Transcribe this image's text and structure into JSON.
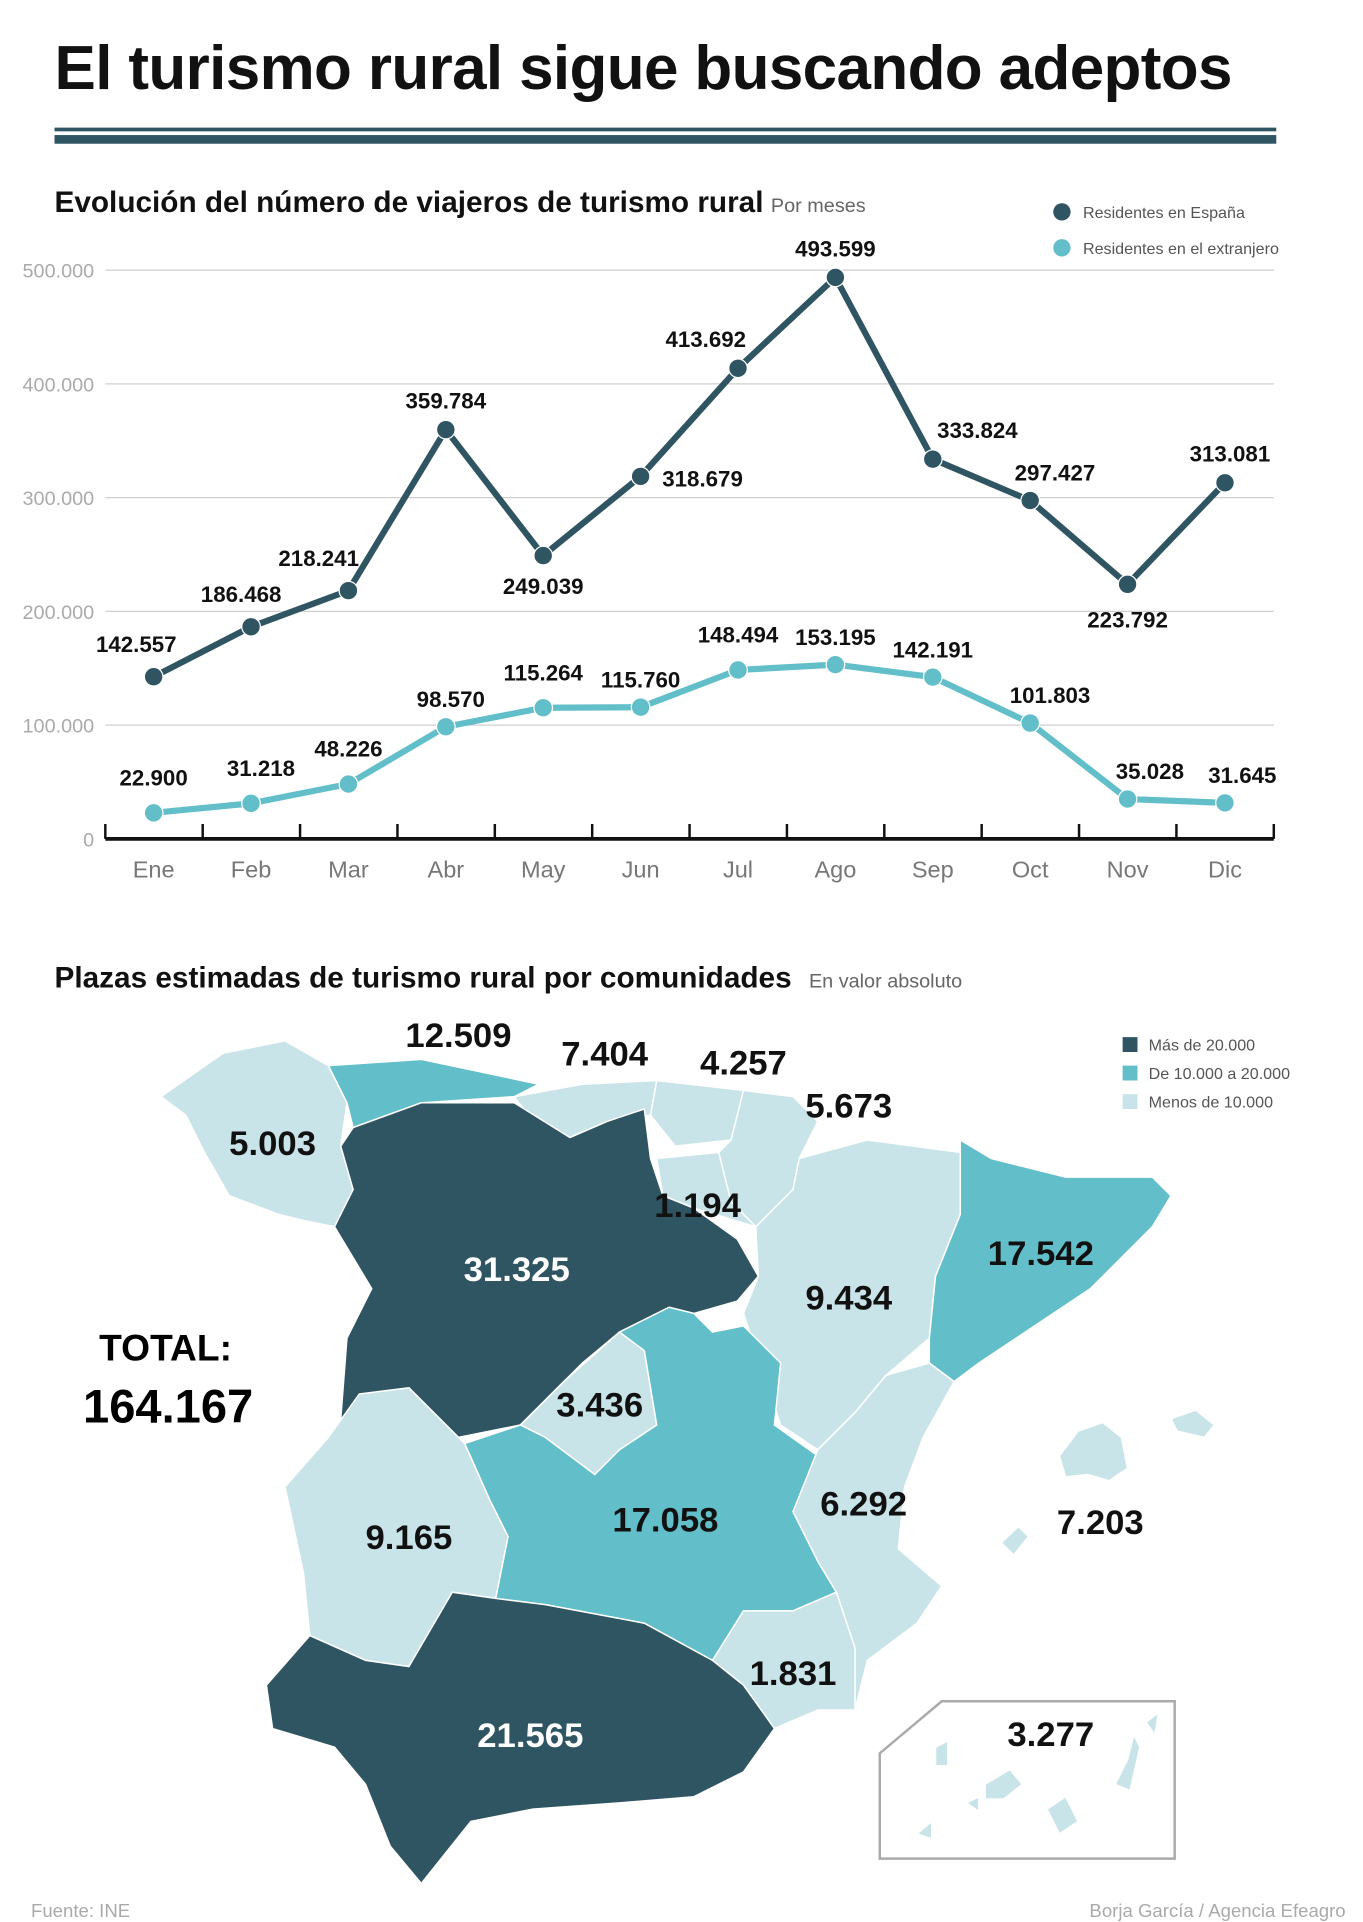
{
  "title": "El turismo rural sigue buscando adeptos",
  "colors": {
    "dark": "#2f5562",
    "teal": "#62bfc9",
    "light": "#c9e4e9"
  },
  "chart_data": [
    {
      "type": "line",
      "title": "Evolución del número de viajeros de turismo rural",
      "subtitle": "Por meses",
      "categories": [
        "Ene",
        "Feb",
        "Mar",
        "Abr",
        "May",
        "Jun",
        "Jul",
        "Ago",
        "Sep",
        "Oct",
        "Nov",
        "Dic"
      ],
      "yticks": [
        "0",
        "100.000",
        "200.000",
        "300.000",
        "400.000",
        "500.000"
      ],
      "ylim": [
        0,
        500000
      ],
      "grid": true,
      "legend_position": "top-right",
      "series": [
        {
          "name": "Residentes en España",
          "color": "#2f5562",
          "values": [
            142557,
            186468,
            218241,
            359784,
            249039,
            318679,
            413692,
            493599,
            333824,
            297427,
            223792,
            313081
          ],
          "labels": [
            "142.557",
            "186.468",
            "218.241",
            "359.784",
            "249.039",
            "318.679",
            "413.692",
            "493.599",
            "333.824",
            "297.427",
            "223.792",
            "313.081"
          ]
        },
        {
          "name": "Residentes en el extranjero",
          "color": "#62bfc9",
          "values": [
            22900,
            31218,
            48226,
            98570,
            115264,
            115760,
            148494,
            153195,
            142191,
            101803,
            35028,
            31645
          ],
          "labels": [
            "22.900",
            "31.218",
            "48.226",
            "98.570",
            "115.264",
            "115.760",
            "148.494",
            "153.195",
            "142.191",
            "101.803",
            "35.028",
            "31.645"
          ]
        }
      ]
    },
    {
      "type": "choropleth",
      "title": "Plazas estimadas de turismo rural por comunidades",
      "subtitle": "En valor absoluto",
      "legend": [
        {
          "label": "Más de 20.000",
          "class": "dark"
        },
        {
          "label": "De 10.000 a 20.000",
          "class": "teal"
        },
        {
          "label": "Menos de 10.000",
          "class": "light"
        }
      ],
      "total_label": "TOTAL:",
      "total_value": "164.167",
      "regions": [
        {
          "id": "galicia",
          "value": "5.003",
          "class": "light"
        },
        {
          "id": "asturias",
          "value": "12.509",
          "class": "teal"
        },
        {
          "id": "cantabria",
          "value": "7.404",
          "class": "light"
        },
        {
          "id": "pais-vasco",
          "value": "4.257",
          "class": "light"
        },
        {
          "id": "navarra",
          "value": "5.673",
          "class": "light"
        },
        {
          "id": "la-rioja",
          "value": "1.194",
          "class": "light"
        },
        {
          "id": "castilla-leon",
          "value": "31.325",
          "class": "dark"
        },
        {
          "id": "aragon",
          "value": "9.434",
          "class": "light"
        },
        {
          "id": "cataluna",
          "value": "17.542",
          "class": "teal"
        },
        {
          "id": "madrid",
          "value": "3.436",
          "class": "light"
        },
        {
          "id": "castilla-la-mancha",
          "value": "17.058",
          "class": "teal"
        },
        {
          "id": "extremadura",
          "value": "9.165",
          "class": "light"
        },
        {
          "id": "valencia",
          "value": "6.292",
          "class": "light"
        },
        {
          "id": "baleares",
          "value": "7.203",
          "class": "light"
        },
        {
          "id": "murcia",
          "value": "1.831",
          "class": "light"
        },
        {
          "id": "andalucia",
          "value": "21.565",
          "class": "dark"
        },
        {
          "id": "canarias",
          "value": "3.277",
          "class": "light"
        }
      ]
    }
  ],
  "footer": {
    "source": "Fuente: INE",
    "credit": "Borja García / Agencia Efeagro"
  }
}
